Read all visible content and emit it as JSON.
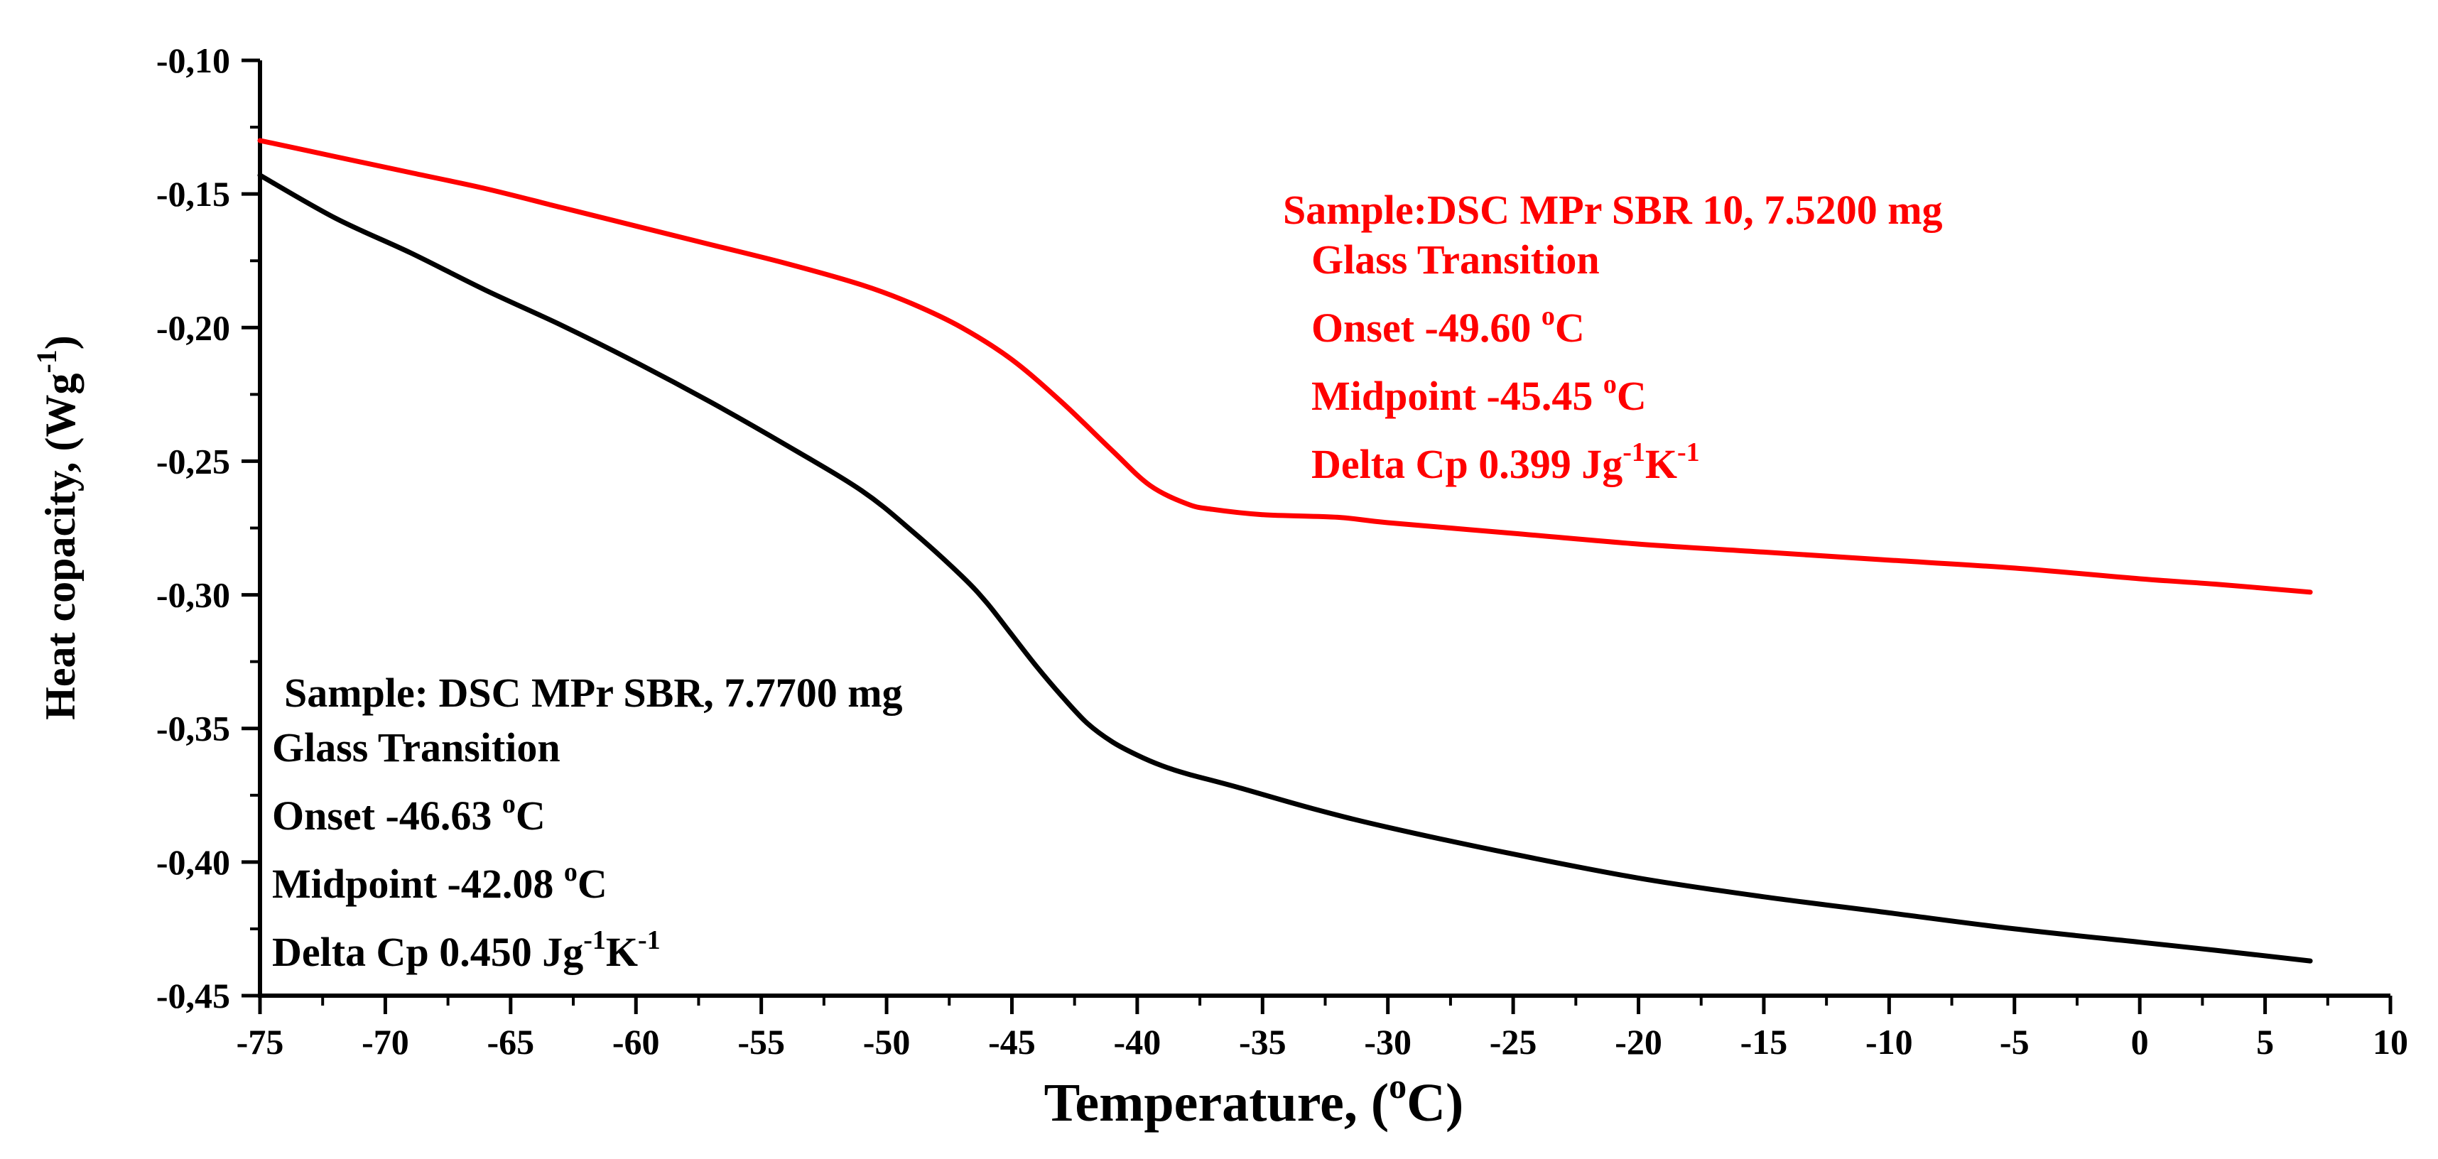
{
  "chart_data": {
    "type": "line",
    "xlabel": {
      "pre": "Temperature, (",
      "sup": "o",
      "post": "C)"
    },
    "ylabel": {
      "pre": "Heat copacity, (Wg",
      "sup": "-1",
      "post": ")"
    },
    "xlim": [
      -75,
      10
    ],
    "ylim": [
      -0.45,
      -0.1
    ],
    "x_ticks": [
      -75,
      -70,
      -65,
      -60,
      -55,
      -50,
      -45,
      -40,
      -35,
      -30,
      -25,
      -20,
      -15,
      -10,
      -5,
      0,
      5,
      10
    ],
    "x_tick_labels": [
      "-75",
      "-70",
      "-65",
      "-60",
      "-55",
      "-50",
      "-45",
      "-40",
      "-35",
      "-30",
      "-25",
      "-20",
      "-15",
      "-10",
      "-5",
      "0",
      "5",
      "10"
    ],
    "y_ticks": [
      -0.1,
      -0.15,
      -0.2,
      -0.25,
      -0.3,
      -0.35,
      -0.4,
      -0.45
    ],
    "y_tick_labels": [
      "-0,10",
      "-0,15",
      "-0,20",
      "-0,25",
      "-0,30",
      "-0,35",
      "-0,40",
      "-0,45"
    ],
    "grid": false,
    "legend": "none",
    "series": [
      {
        "color": "#ff0000",
        "x": [
          -75,
          -72,
          -69,
          -66,
          -63,
          -60,
          -57,
          -54,
          -51,
          -49,
          -47,
          -45,
          -43,
          -41,
          -39.5,
          -38,
          -37,
          -35,
          -32,
          -30,
          -25,
          -20,
          -15,
          -10,
          -5,
          0,
          3,
          6.8
        ],
        "y": [
          -0.13,
          -0.136,
          -0.142,
          -0.148,
          -0.155,
          -0.162,
          -0.169,
          -0.176,
          -0.184,
          -0.191,
          -0.2,
          -0.212,
          -0.228,
          -0.246,
          -0.259,
          -0.266,
          -0.268,
          -0.27,
          -0.271,
          -0.273,
          -0.277,
          -0.281,
          -0.284,
          -0.287,
          -0.29,
          -0.294,
          -0.296,
          -0.299
        ]
      },
      {
        "color": "#000000",
        "x": [
          -75,
          -72,
          -69,
          -66,
          -63,
          -60,
          -57,
          -54,
          -51,
          -49,
          -47,
          -46,
          -45,
          -44,
          -43,
          -42,
          -41,
          -40,
          -39,
          -38,
          -36,
          -33,
          -30,
          -25,
          -20,
          -15,
          -10,
          -5,
          0,
          3,
          6.8
        ],
        "y": [
          -0.143,
          -0.159,
          -0.172,
          -0.186,
          -0.199,
          -0.213,
          -0.228,
          -0.244,
          -0.261,
          -0.276,
          -0.293,
          -0.303,
          -0.315,
          -0.327,
          -0.338,
          -0.348,
          -0.355,
          -0.36,
          -0.364,
          -0.367,
          -0.372,
          -0.38,
          -0.387,
          -0.397,
          -0.406,
          -0.413,
          -0.419,
          -0.425,
          -0.43,
          -0.433,
          -0.437
        ]
      }
    ],
    "annotations": [
      {
        "color": "#ff0000",
        "sample": "Sample:DSC MPr SBR 10, 7.5200 mg",
        "title": "Glass Transition",
        "onset": {
          "pre": "Onset -49.60 ",
          "sup": "o",
          "post": "C"
        },
        "midpoint": {
          "pre": "Midpoint -45.45 ",
          "sup": "o",
          "post": "C"
        },
        "delta": {
          "pre": "Delta Cp 0.399 Jg",
          "sup1": "-1",
          "mid": "K",
          "sup2": "-1"
        }
      },
      {
        "color": "#000000",
        "sample": "Sample: DSC MPr SBR, 7.7700 mg",
        "title": "Glass Transition",
        "onset": {
          "pre": "Onset -46.63 ",
          "sup": "o",
          "post": "C"
        },
        "midpoint": {
          "pre": "Midpoint -42.08 ",
          "sup": "o",
          "post": "C"
        },
        "delta": {
          "pre": "Delta Cp 0.450 Jg",
          "sup1": "-1",
          "mid": "K",
          "sup2": "-1"
        }
      }
    ]
  }
}
